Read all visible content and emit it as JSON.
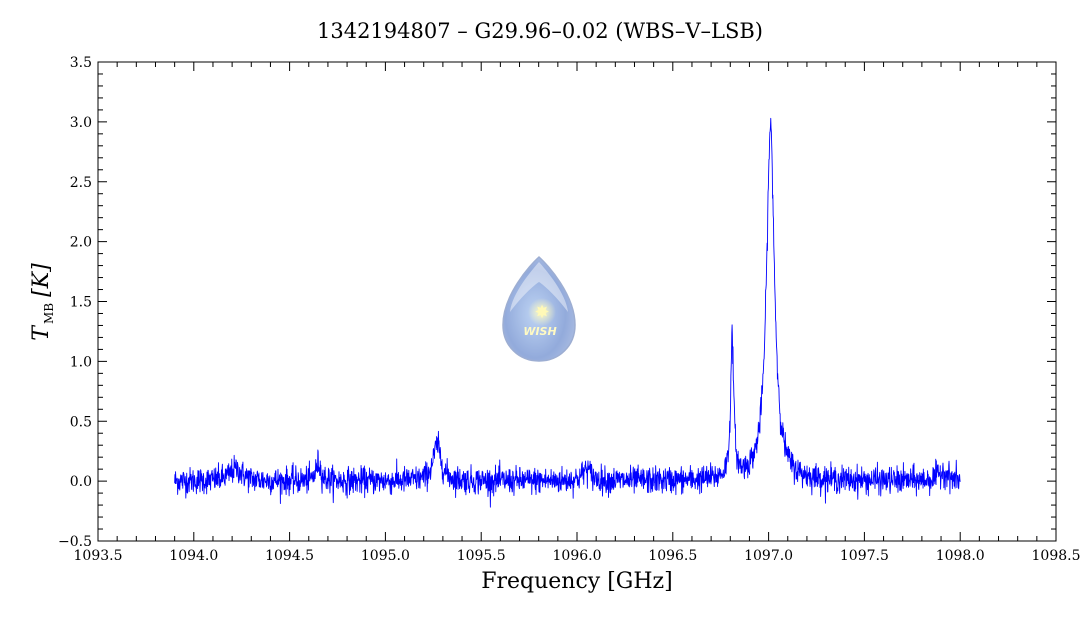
{
  "chart_data": {
    "type": "line",
    "title": "1342194807 – G29.96–0.02 (WBS–V–LSB)",
    "xlabel": "Frequency [GHz]",
    "ylabel_main": "T",
    "ylabel_sub": "MB",
    "ylabel_unit": "[K]",
    "xlim": [
      1093.5,
      1098.5
    ],
    "ylim": [
      -0.5,
      3.5
    ],
    "xticks": [
      "1093.5",
      "1094.0",
      "1094.5",
      "1095.0",
      "1095.5",
      "1096.0",
      "1096.5",
      "1097.0",
      "1097.5",
      "1098.0",
      "1098.5"
    ],
    "yticks": [
      "−0.5",
      "0.0",
      "0.5",
      "1.0",
      "1.5",
      "2.0",
      "2.5",
      "3.0",
      "3.5"
    ],
    "grid": false,
    "line_color": "#0000ff",
    "series": [
      {
        "x_range": [
          1093.9,
          1098.0
        ],
        "noise_rms": 0.055,
        "baseline": 0.0,
        "features": [
          {
            "center": 1094.22,
            "peak": 0.1,
            "width": 0.04
          },
          {
            "center": 1094.65,
            "peak": 0.15,
            "width": 0.015
          },
          {
            "center": 1095.27,
            "peak": 0.3,
            "width": 0.025
          },
          {
            "center": 1096.05,
            "peak": 0.1,
            "width": 0.025
          },
          {
            "center": 1096.81,
            "peak": 1.15,
            "width": 0.01
          },
          {
            "center": 1097.01,
            "peak": 2.95,
            "width": 0.025
          },
          {
            "center": 1097.91,
            "peak": 0.08,
            "width": 0.03
          }
        ]
      }
    ]
  },
  "logo": {
    "text": "WISH"
  }
}
